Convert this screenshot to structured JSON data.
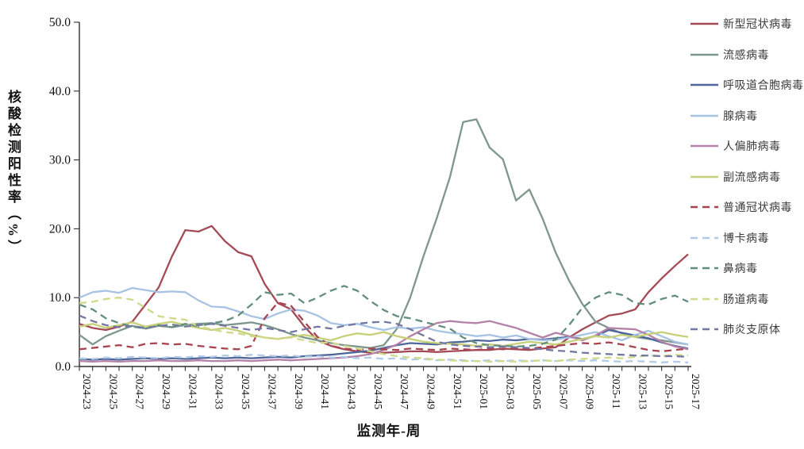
{
  "chart_data": {
    "type": "line",
    "title": "",
    "xlabel": "监测年-周",
    "ylabel": "核酸检测阳性率（%）",
    "ylim": [
      0,
      50
    ],
    "y_ticks": [
      "0.0",
      "10.0",
      "20.0",
      "30.0",
      "40.0",
      "50.0"
    ],
    "grid": false,
    "legend_position": "right",
    "x_tick_every": 2,
    "x": [
      "2024-23",
      "2024-24",
      "2024-25",
      "2024-26",
      "2024-27",
      "2024-28",
      "2024-29",
      "2024-30",
      "2024-31",
      "2024-32",
      "2024-33",
      "2024-34",
      "2024-35",
      "2024-36",
      "2024-37",
      "2024-38",
      "2024-39",
      "2024-40",
      "2024-41",
      "2024-42",
      "2024-43",
      "2024-44",
      "2024-45",
      "2024-46",
      "2024-47",
      "2024-48",
      "2024-49",
      "2024-50",
      "2024-51",
      "2024-52",
      "2025-01",
      "2025-02",
      "2025-03",
      "2025-04",
      "2025-05",
      "2025-06",
      "2025-07",
      "2025-08",
      "2025-09",
      "2025-10",
      "2025-11",
      "2025-12",
      "2025-13",
      "2025-14",
      "2025-15",
      "2025-16",
      "2025-17"
    ],
    "series": [
      {
        "id": "covid",
        "name": "新型冠状病毒",
        "color": "#a44a57",
        "style": "solid",
        "values": [
          6.2,
          5.6,
          5.3,
          5.8,
          6.5,
          9.0,
          11.5,
          16.0,
          19.8,
          19.6,
          20.4,
          18.2,
          16.6,
          16.0,
          12.0,
          9.2,
          8.3,
          5.8,
          3.8,
          3.0,
          2.5,
          2.2,
          2.0,
          2.0,
          2.1,
          2.2,
          2.2,
          2.1,
          2.2,
          2.3,
          2.4,
          2.4,
          2.6,
          2.5,
          2.4,
          2.6,
          2.8,
          4.2,
          5.4,
          6.4,
          7.4,
          7.7,
          8.3,
          10.8,
          12.8,
          14.6,
          16.3
        ]
      },
      {
        "id": "influenza",
        "name": "流感病毒",
        "color": "#7e978c",
        "style": "solid",
        "values": [
          4.6,
          3.2,
          4.4,
          5.2,
          5.9,
          5.5,
          5.9,
          5.7,
          6.0,
          6.2,
          6.3,
          6.0,
          6.2,
          6.4,
          6.0,
          5.4,
          4.7,
          4.2,
          3.8,
          3.4,
          3.1,
          2.9,
          2.7,
          3.1,
          5.5,
          10.0,
          16.0,
          21.5,
          27.5,
          35.5,
          35.9,
          31.8,
          30.1,
          24.1,
          25.7,
          21.5,
          16.5,
          12.5,
          9.1,
          6.5,
          5.6,
          4.8,
          4.3,
          4.0,
          3.8,
          3.5,
          3.2
        ]
      },
      {
        "id": "rsv",
        "name": "呼吸道合胞病毒",
        "color": "#4f669b",
        "style": "solid",
        "values": [
          1.1,
          1.0,
          1.1,
          1.0,
          1.1,
          1.2,
          1.1,
          1.2,
          1.1,
          1.2,
          1.3,
          1.2,
          1.3,
          1.2,
          1.3,
          1.4,
          1.3,
          1.5,
          1.6,
          1.7,
          1.9,
          2.1,
          2.3,
          2.7,
          3.1,
          3.4,
          3.3,
          3.2,
          3.5,
          3.6,
          3.8,
          3.7,
          3.9,
          3.8,
          4.0,
          3.9,
          4.1,
          4.3,
          4.0,
          4.4,
          5.3,
          4.9,
          4.5,
          4.1,
          3.5,
          3.0,
          2.6
        ]
      },
      {
        "id": "adenovirus",
        "name": "腺病毒",
        "color": "#a6c3e3",
        "style": "solid",
        "values": [
          10.0,
          10.8,
          11.0,
          10.7,
          11.4,
          11.1,
          10.8,
          10.9,
          10.8,
          9.6,
          8.7,
          8.6,
          8.0,
          7.3,
          6.9,
          7.7,
          8.3,
          8.1,
          7.4,
          6.3,
          6.0,
          6.2,
          5.7,
          5.3,
          5.7,
          5.5,
          5.7,
          5.2,
          4.9,
          4.7,
          4.4,
          4.6,
          4.2,
          4.5,
          4.0,
          3.8,
          3.9,
          4.2,
          4.6,
          5.0,
          4.4,
          3.8,
          4.6,
          5.2,
          4.4,
          3.6,
          3.2
        ]
      },
      {
        "id": "hmpv",
        "name": "人偏肺病毒",
        "color": "#b481a8",
        "style": "solid",
        "values": [
          0.8,
          0.7,
          0.8,
          0.7,
          0.8,
          0.8,
          0.9,
          0.8,
          0.8,
          0.9,
          0.8,
          0.8,
          0.9,
          0.8,
          0.9,
          1.0,
          0.9,
          1.0,
          1.1,
          1.2,
          1.3,
          1.5,
          1.8,
          2.4,
          3.2,
          4.4,
          5.4,
          6.3,
          6.6,
          6.4,
          6.3,
          6.6,
          6.1,
          5.6,
          4.9,
          4.2,
          4.9,
          4.4,
          3.8,
          4.5,
          5.6,
          5.5,
          5.4,
          4.6,
          3.6,
          2.9,
          2.5
        ]
      },
      {
        "id": "parainfluenza",
        "name": "副流感病毒",
        "color": "#c6d077",
        "style": "solid",
        "values": [
          5.8,
          6.2,
          5.6,
          6.0,
          6.4,
          5.8,
          6.2,
          6.5,
          6.0,
          5.6,
          5.3,
          5.6,
          5.2,
          4.6,
          4.2,
          4.0,
          4.3,
          4.6,
          4.2,
          3.8,
          4.4,
          4.8,
          4.6,
          5.0,
          4.4,
          4.0,
          3.6,
          3.4,
          3.3,
          3.2,
          3.0,
          3.2,
          3.0,
          3.3,
          3.6,
          3.4,
          3.2,
          3.6,
          4.0,
          4.4,
          4.2,
          4.6,
          4.3,
          4.7,
          5.0,
          4.6,
          4.3
        ]
      },
      {
        "id": "common-coronavirus",
        "name": "普通冠状病毒",
        "color": "#a84450",
        "style": "dashed",
        "values": [
          2.5,
          2.7,
          2.9,
          3.1,
          2.8,
          3.3,
          3.4,
          3.2,
          3.3,
          3.0,
          2.8,
          2.6,
          2.5,
          3.0,
          7.0,
          9.3,
          8.8,
          6.5,
          4.3,
          3.0,
          2.6,
          2.4,
          2.6,
          2.5,
          2.4,
          2.6,
          2.5,
          2.4,
          2.6,
          2.5,
          2.4,
          2.6,
          2.5,
          2.7,
          2.6,
          2.8,
          3.0,
          3.2,
          3.4,
          3.3,
          3.5,
          3.2,
          2.8,
          2.4,
          2.2,
          2.4,
          2.6
        ]
      },
      {
        "id": "bocavirus",
        "name": "博卡病毒",
        "color": "#b0cae8",
        "style": "dashed",
        "values": [
          1.2,
          1.1,
          1.3,
          1.2,
          1.4,
          1.3,
          1.2,
          1.4,
          1.3,
          1.5,
          1.4,
          1.6,
          1.5,
          1.7,
          1.6,
          1.5,
          1.6,
          1.4,
          1.5,
          1.3,
          1.4,
          1.2,
          1.3,
          1.1,
          1.2,
          1.0,
          1.1,
          0.9,
          1.0,
          0.9,
          0.8,
          0.9,
          0.8,
          0.9,
          0.8,
          0.9,
          0.8,
          0.9,
          0.8,
          0.9,
          0.8,
          0.7,
          0.8,
          0.7,
          0.6,
          0.7,
          0.6
        ]
      },
      {
        "id": "rhinovirus",
        "name": "鼻病毒",
        "color": "#628e7c",
        "style": "dashed",
        "values": [
          9.0,
          8.3,
          7.0,
          6.3,
          5.8,
          5.5,
          6.0,
          5.7,
          6.2,
          5.8,
          6.3,
          6.6,
          7.4,
          9.0,
          10.8,
          10.4,
          10.6,
          9.2,
          10.0,
          11.0,
          11.7,
          11.0,
          9.5,
          8.2,
          7.3,
          7.0,
          6.5,
          6.0,
          5.5,
          4.2,
          3.4,
          3.1,
          3.0,
          2.9,
          3.0,
          3.3,
          3.9,
          6.0,
          8.5,
          10.0,
          10.8,
          10.4,
          9.2,
          9.0,
          9.8,
          10.3,
          9.4
        ]
      },
      {
        "id": "enterovirus",
        "name": "肠道病毒",
        "color": "#cfd98a",
        "style": "dashed",
        "values": [
          9.2,
          9.4,
          9.8,
          10.0,
          9.7,
          8.5,
          7.3,
          7.0,
          6.8,
          5.8,
          5.4,
          5.0,
          4.8,
          4.4,
          4.2,
          4.0,
          4.2,
          3.8,
          3.4,
          3.5,
          3.0,
          2.6,
          2.2,
          1.8,
          1.5,
          1.3,
          1.2,
          1.0,
          0.9,
          0.8,
          0.8,
          0.7,
          0.8,
          0.7,
          0.8,
          0.9,
          0.8,
          1.0,
          1.1,
          1.2,
          1.3,
          1.2,
          1.4,
          1.6,
          1.5,
          1.7,
          1.6
        ]
      },
      {
        "id": "mycoplasma",
        "name": "肺炎支原体",
        "color": "#7277a3",
        "style": "dashed",
        "values": [
          7.4,
          6.6,
          6.0,
          5.7,
          5.9,
          5.6,
          5.9,
          6.1,
          5.8,
          6.0,
          6.2,
          5.9,
          5.6,
          5.3,
          5.6,
          5.3,
          5.0,
          5.4,
          5.8,
          5.5,
          5.9,
          6.2,
          6.4,
          6.5,
          6.2,
          5.4,
          4.5,
          3.6,
          3.2,
          3.0,
          2.9,
          2.8,
          2.9,
          2.8,
          2.7,
          2.5,
          2.3,
          2.2,
          2.0,
          1.9,
          1.8,
          1.7,
          1.6,
          1.6,
          1.5,
          1.5,
          1.4
        ]
      }
    ]
  }
}
